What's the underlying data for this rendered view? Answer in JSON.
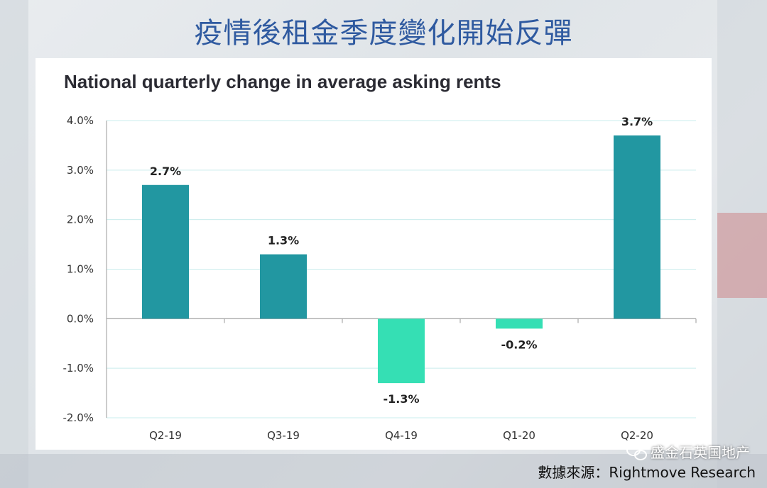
{
  "slide": {
    "title": "疫情後租金季度變化開始反彈",
    "source": "數據來源：Rightmove Research",
    "watermark": "盛金石英国地产",
    "watermark_icon": "wechat-icon"
  },
  "colors": {
    "positive": "#2297a1",
    "negative": "#35dfb4",
    "grid": "#c9ecec",
    "axis": "#999999"
  },
  "chart_data": {
    "type": "bar",
    "title": "National quarterly change in average asking rents",
    "xlabel": "",
    "ylabel": "",
    "categories": [
      "Q2-19",
      "Q3-19",
      "Q4-19",
      "Q1-20",
      "Q2-20"
    ],
    "values": [
      2.7,
      1.3,
      -1.3,
      -0.2,
      3.7
    ],
    "data_labels": [
      "2.7%",
      "1.3%",
      "-1.3%",
      "-0.2%",
      "3.7%"
    ],
    "ylim": [
      -2.0,
      4.0
    ],
    "yticks": [
      4.0,
      3.0,
      2.0,
      1.0,
      0.0,
      -1.0,
      -2.0
    ],
    "ytick_labels": [
      "4.0%",
      "3.0%",
      "2.0%",
      "1.0%",
      "0.0%",
      "-1.0%",
      "-2.0%"
    ],
    "grid": true,
    "legend": "none"
  }
}
